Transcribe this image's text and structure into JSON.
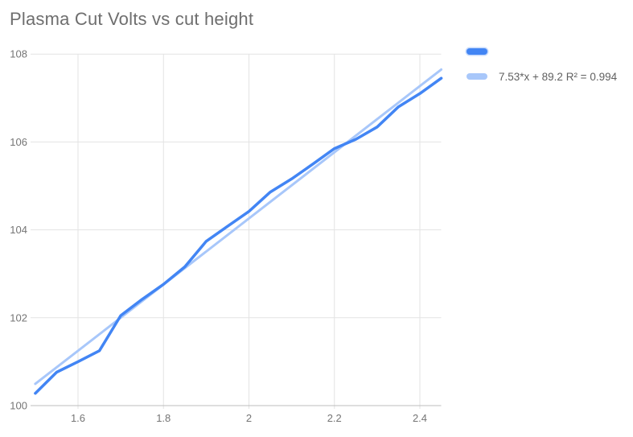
{
  "title": "Plasma Cut Volts vs cut height",
  "colors": {
    "series_blue": "#4285f4",
    "trendline_blue": "#a8c7fa",
    "gridline": "#e3e3e3",
    "axis_line": "#bdbdbd",
    "title_text": "#6e6e6e",
    "tick_text": "#757575",
    "legend_text": "#616161"
  },
  "legend": {
    "entries": [
      {
        "label": "",
        "kind": "series"
      },
      {
        "label": "7.53*x + 89.2 R² = 0.994",
        "kind": "trend"
      }
    ]
  },
  "chart_data": {
    "type": "line",
    "title": "Plasma Cut Volts vs cut height",
    "xlabel": "",
    "ylabel": "",
    "xlim": [
      1.5,
      2.45
    ],
    "ylim": [
      100,
      108
    ],
    "grid": true,
    "legend_position": "right",
    "x_ticks": [
      "1.6",
      "1.8",
      "2",
      "2.2",
      "2.4"
    ],
    "x_tick_values": [
      1.6,
      1.8,
      2.0,
      2.2,
      2.4
    ],
    "y_ticks": [
      "100",
      "102",
      "104",
      "106",
      "108"
    ],
    "y_tick_values": [
      100,
      102,
      104,
      106,
      108
    ],
    "x": [
      1.5,
      1.55,
      1.6,
      1.65,
      1.7,
      1.75,
      1.8,
      1.85,
      1.9,
      1.95,
      2.0,
      2.05,
      2.1,
      2.15,
      2.2,
      2.25,
      2.3,
      2.35,
      2.4,
      2.45
    ],
    "series": [
      {
        "name": "Plasma Cut Volts",
        "color": "#4285f4",
        "values": [
          100.28,
          100.76,
          101.0,
          101.25,
          102.05,
          102.42,
          102.76,
          103.16,
          103.74,
          104.08,
          104.42,
          104.86,
          105.16,
          105.5,
          105.85,
          106.06,
          106.34,
          106.8,
          107.1,
          107.45
        ]
      },
      {
        "name": "trendline",
        "color": "#a8c7fa",
        "equation": "7.53*x + 89.2",
        "slope": 7.53,
        "intercept": 89.2,
        "r_squared": 0.994
      }
    ]
  }
}
